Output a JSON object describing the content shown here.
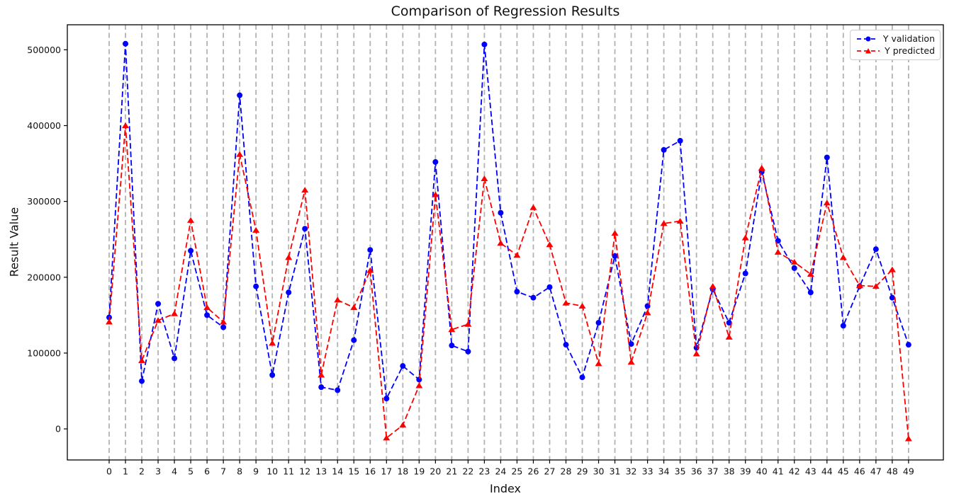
{
  "chart_data": {
    "type": "line",
    "title": "Comparison of Regression Results",
    "xlabel": "Index",
    "ylabel": "Result Value",
    "grid": "vertical-dashed",
    "grid_color": "#b2b2b2",
    "axis_color": "#000000",
    "background_color": "#ffffff",
    "legend_position": "upper right",
    "ylim": [
      -41000,
      533000
    ],
    "yticks": [
      0,
      100000,
      200000,
      300000,
      400000,
      500000
    ],
    "x": [
      0,
      1,
      2,
      3,
      4,
      5,
      6,
      7,
      8,
      9,
      10,
      11,
      12,
      13,
      14,
      15,
      16,
      17,
      18,
      19,
      20,
      21,
      22,
      23,
      24,
      25,
      26,
      27,
      28,
      29,
      30,
      31,
      32,
      33,
      34,
      35,
      36,
      37,
      38,
      39,
      40,
      41,
      42,
      43,
      44,
      45,
      46,
      47,
      48,
      49
    ],
    "series": [
      {
        "name": "Y validation",
        "color": "#0000ff",
        "marker": "circle",
        "linestyle": "dashed",
        "values": [
          147000,
          508000,
          63000,
          165000,
          93000,
          235000,
          150000,
          134000,
          440000,
          188000,
          71000,
          180000,
          264000,
          55000,
          51000,
          117000,
          236000,
          40000,
          83000,
          65000,
          352000,
          110000,
          102000,
          507000,
          285000,
          181000,
          173000,
          187000,
          111000,
          68000,
          140000,
          228000,
          112000,
          162000,
          368000,
          380000,
          107000,
          184000,
          140000,
          205000,
          339000,
          248000,
          212000,
          180000,
          358000,
          136000,
          188000,
          237000,
          173000,
          111000
        ]
      },
      {
        "name": "Y predicted",
        "color": "#ff0000",
        "marker": "triangle",
        "linestyle": "dashed",
        "values": [
          141000,
          400000,
          90000,
          143000,
          152000,
          275000,
          160000,
          141000,
          362000,
          262000,
          113000,
          226000,
          315000,
          71000,
          170000,
          160000,
          209000,
          -12000,
          5000,
          57000,
          309000,
          131000,
          138000,
          330000,
          245000,
          229000,
          292000,
          243000,
          166000,
          162000,
          86000,
          258000,
          88000,
          153000,
          271000,
          274000,
          99000,
          188000,
          121000,
          252000,
          344000,
          233000,
          220000,
          204000,
          298000,
          226000,
          189000,
          188000,
          210000,
          -13000
        ]
      }
    ]
  }
}
